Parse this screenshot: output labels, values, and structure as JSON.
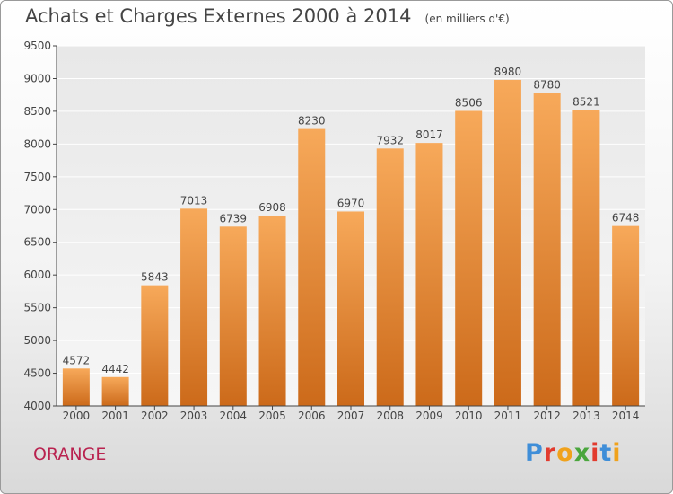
{
  "header": {
    "title": "Achats et Charges Externes 2000 à 2014",
    "subtitle": "(en milliers d'€)"
  },
  "footer": {
    "commune": "ORANGE",
    "logo_text": "Proxiti",
    "logo_colors": [
      "#3f8ed8",
      "#e23b2e",
      "#f0a21c",
      "#4aa63d",
      "#e23b2e",
      "#3f8ed8",
      "#f0a21c"
    ]
  },
  "chart_data": {
    "type": "bar",
    "categories": [
      "2000",
      "2001",
      "2002",
      "2003",
      "2004",
      "2005",
      "2006",
      "2007",
      "2008",
      "2009",
      "2010",
      "2011",
      "2012",
      "2013",
      "2014"
    ],
    "values": [
      4572,
      4442,
      5843,
      7013,
      6739,
      6908,
      8230,
      6970,
      7932,
      8017,
      8506,
      8980,
      8780,
      8521,
      6748
    ],
    "ylim": [
      4000,
      9500
    ],
    "yticks": [
      4000,
      4500,
      5000,
      5500,
      6000,
      6500,
      7000,
      7500,
      8000,
      8500,
      9000,
      9500
    ],
    "grid": true,
    "bar_color_top": "#f7a95a",
    "bar_color_bottom": "#cc6a1a"
  }
}
